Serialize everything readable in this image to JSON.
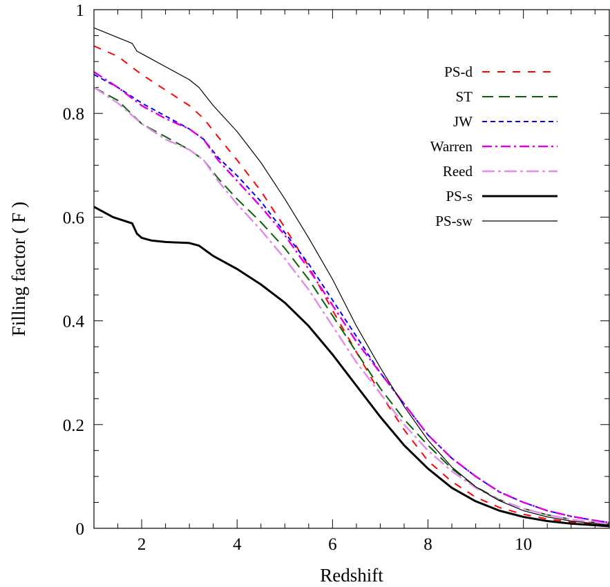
{
  "chart_data": {
    "type": "line",
    "xlabel": "Redshift",
    "ylabel": "Filling factor ( F )",
    "xlim": [
      1,
      11.8
    ],
    "ylim": [
      0,
      1
    ],
    "xticks": [
      2,
      4,
      6,
      8,
      10
    ],
    "yticks": [
      0,
      0.2,
      0.4,
      0.6,
      0.8,
      1
    ],
    "xtick_labels": [
      "2",
      "4",
      "6",
      "8",
      "10"
    ],
    "ytick_labels": [
      "0",
      "0.2",
      "0.4",
      "0.6",
      "0.8",
      "1"
    ],
    "xminor_step": 0.5,
    "yminor_step": 0.05,
    "grid": false,
    "legend_position": "top-right",
    "series": [
      {
        "name": "PS-d",
        "color": "#ff0000",
        "dash": "11,11",
        "width": 2,
        "x": [
          1,
          1.5,
          2,
          2.5,
          3,
          3.3,
          3.6,
          4,
          4.5,
          5,
          5.5,
          6,
          6.5,
          7,
          7.5,
          8,
          8.5,
          9,
          9.5,
          10,
          10.5,
          11,
          11.5,
          11.8
        ],
        "y": [
          0.93,
          0.91,
          0.875,
          0.845,
          0.815,
          0.79,
          0.755,
          0.71,
          0.65,
          0.58,
          0.505,
          0.42,
          0.34,
          0.26,
          0.19,
          0.13,
          0.09,
          0.06,
          0.04,
          0.027,
          0.018,
          0.012,
          0.008,
          0.006
        ]
      },
      {
        "name": "ST",
        "color": "#006400",
        "dash": "16,8",
        "width": 2,
        "x": [
          1,
          1.5,
          2,
          2.5,
          3,
          3.3,
          3.6,
          4,
          4.5,
          5,
          5.5,
          6,
          6.5,
          7,
          7.5,
          8,
          8.5,
          9,
          9.5,
          10,
          10.5,
          11,
          11.5,
          11.8
        ],
        "y": [
          0.85,
          0.825,
          0.78,
          0.755,
          0.73,
          0.71,
          0.675,
          0.635,
          0.59,
          0.54,
          0.48,
          0.41,
          0.34,
          0.27,
          0.21,
          0.16,
          0.115,
          0.08,
          0.055,
          0.038,
          0.026,
          0.017,
          0.011,
          0.008
        ]
      },
      {
        "name": "JW",
        "color": "#0000ff",
        "dash": "7,5",
        "width": 2,
        "x": [
          1,
          1.5,
          2,
          2.5,
          3,
          3.3,
          3.6,
          4,
          4.5,
          5,
          5.5,
          6,
          6.5,
          7,
          7.5,
          8,
          8.5,
          9,
          9.5,
          10,
          10.5,
          11,
          11.5,
          11.8
        ],
        "y": [
          0.875,
          0.85,
          0.82,
          0.795,
          0.77,
          0.75,
          0.715,
          0.68,
          0.63,
          0.57,
          0.51,
          0.44,
          0.37,
          0.3,
          0.24,
          0.18,
          0.135,
          0.1,
          0.07,
          0.05,
          0.034,
          0.023,
          0.015,
          0.011
        ]
      },
      {
        "name": "Warren",
        "color": "#e000e0",
        "dash": "14,5,3,5",
        "width": 2.5,
        "x": [
          1,
          1.5,
          2,
          2.5,
          3,
          3.3,
          3.6,
          4,
          4.5,
          5,
          5.5,
          6,
          6.5,
          7,
          7.5,
          8,
          8.5,
          9,
          9.5,
          10,
          10.5,
          11,
          11.5,
          11.8
        ],
        "y": [
          0.88,
          0.85,
          0.815,
          0.79,
          0.77,
          0.75,
          0.71,
          0.67,
          0.62,
          0.565,
          0.5,
          0.43,
          0.36,
          0.3,
          0.24,
          0.18,
          0.135,
          0.1,
          0.07,
          0.05,
          0.034,
          0.023,
          0.015,
          0.011
        ]
      },
      {
        "name": "Reed",
        "color": "#e08ee8",
        "dash": "18,5,4,5",
        "width": 2.5,
        "x": [
          1,
          1.5,
          2,
          2.5,
          3,
          3.3,
          3.6,
          4,
          4.5,
          5,
          5.5,
          6,
          6.5,
          7,
          7.5,
          8,
          8.5,
          9,
          9.5,
          10,
          10.5,
          11,
          11.5,
          11.8
        ],
        "y": [
          0.85,
          0.82,
          0.78,
          0.75,
          0.73,
          0.71,
          0.67,
          0.625,
          0.575,
          0.52,
          0.46,
          0.39,
          0.32,
          0.26,
          0.2,
          0.15,
          0.11,
          0.078,
          0.054,
          0.038,
          0.026,
          0.017,
          0.011,
          0.008
        ]
      },
      {
        "name": "PS-s",
        "color": "#000000",
        "dash": "",
        "width": 3,
        "x": [
          1,
          1.4,
          1.8,
          1.9,
          2,
          2.2,
          2.5,
          3,
          3.2,
          3.5,
          4,
          4.5,
          5,
          5.5,
          6,
          6.5,
          7,
          7.5,
          8,
          8.5,
          9,
          9.5,
          10,
          10.5,
          11,
          11.5,
          11.8
        ],
        "y": [
          0.62,
          0.6,
          0.588,
          0.568,
          0.56,
          0.555,
          0.552,
          0.55,
          0.545,
          0.525,
          0.5,
          0.47,
          0.435,
          0.39,
          0.335,
          0.275,
          0.215,
          0.16,
          0.115,
          0.078,
          0.052,
          0.034,
          0.022,
          0.014,
          0.009,
          0.006,
          0.004
        ]
      },
      {
        "name": "PS-sw",
        "color": "#000000",
        "dash": "",
        "width": 1.2,
        "x": [
          1,
          1.4,
          1.8,
          1.9,
          2,
          2.2,
          2.5,
          3,
          3.2,
          3.5,
          4,
          4.5,
          5,
          5.5,
          6,
          6.5,
          7,
          7.5,
          8,
          8.5,
          9,
          9.5,
          10,
          10.5,
          11,
          11.5,
          11.8
        ],
        "y": [
          0.965,
          0.95,
          0.935,
          0.92,
          0.915,
          0.905,
          0.89,
          0.865,
          0.85,
          0.815,
          0.765,
          0.705,
          0.635,
          0.56,
          0.48,
          0.39,
          0.31,
          0.235,
          0.17,
          0.118,
          0.08,
          0.053,
          0.034,
          0.022,
          0.014,
          0.009,
          0.006
        ]
      }
    ]
  }
}
